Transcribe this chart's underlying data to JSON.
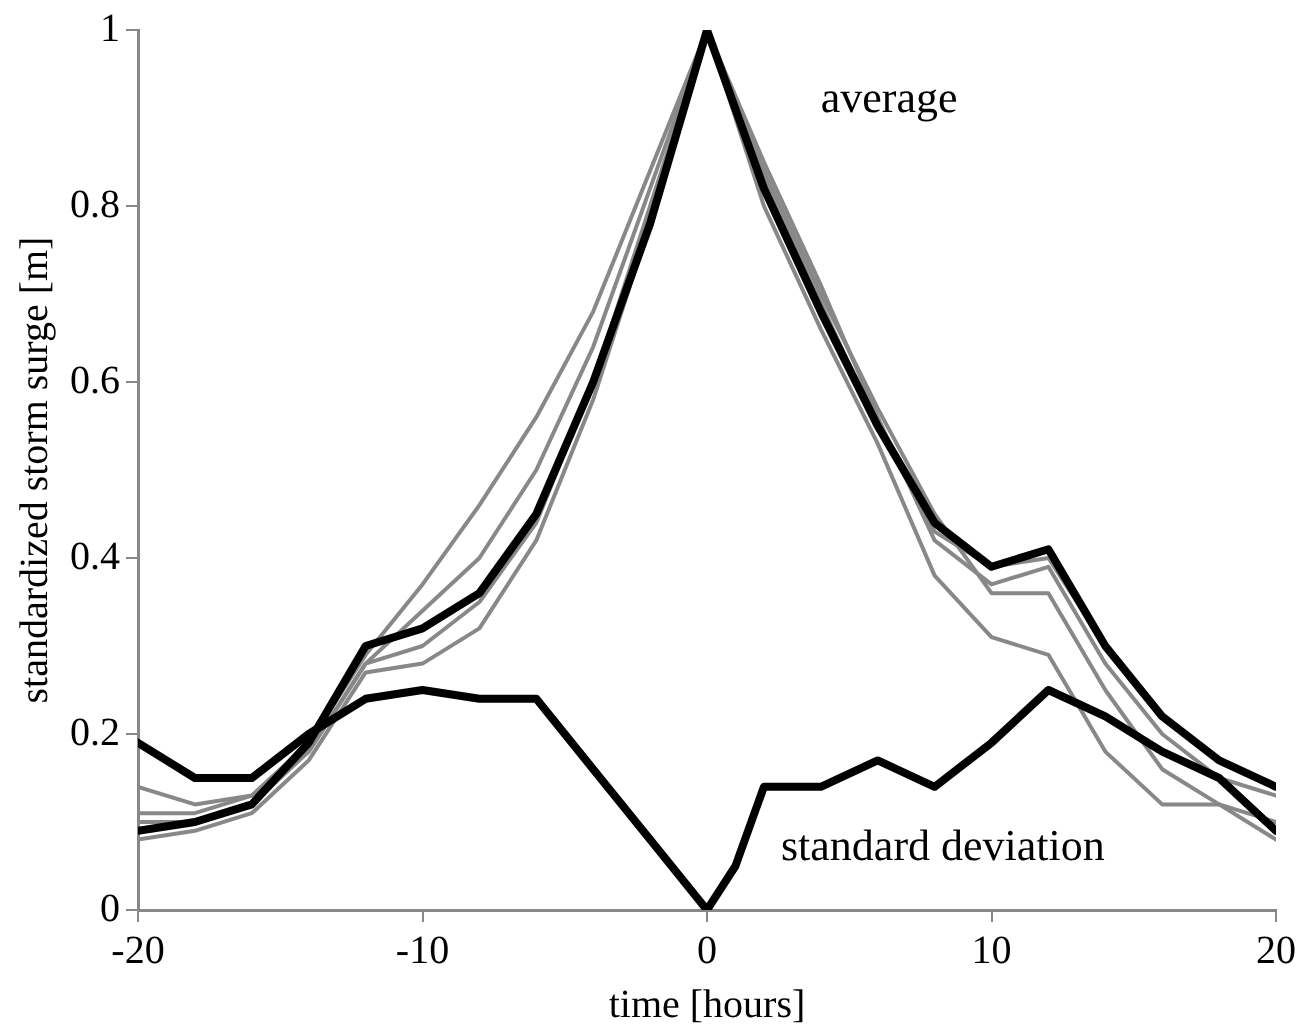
{
  "chart_data": {
    "type": "line",
    "xlabel": "time [hours]",
    "ylabel": "standardized storm surge [m]",
    "xlim": [
      -20,
      20
    ],
    "xticks": [
      -20,
      -10,
      0,
      10,
      20
    ],
    "ylim": [
      0,
      1
    ],
    "yticks": [
      0,
      0.2,
      0.4,
      0.6,
      0.8,
      1
    ],
    "grid": false,
    "legend": false,
    "marker": "none",
    "line_style": "solid",
    "x": [
      -20,
      -18,
      -16,
      -14,
      -12,
      -10,
      -8,
      -6,
      -4,
      -2,
      0,
      2,
      4,
      6,
      8,
      10,
      12,
      14,
      16,
      18,
      20
    ],
    "series": [
      {
        "color": "#888888",
        "values": [
          0.14,
          0.12,
          0.13,
          0.19,
          0.29,
          0.37,
          0.46,
          0.56,
          0.68,
          0.84,
          1.0,
          0.84,
          0.7,
          0.57,
          0.45,
          0.36,
          0.36,
          0.25,
          0.16,
          0.12,
          0.08
        ]
      },
      {
        "color": "#888888",
        "values": [
          0.08,
          0.09,
          0.11,
          0.17,
          0.27,
          0.28,
          0.32,
          0.42,
          0.58,
          0.78,
          1.0,
          0.8,
          0.66,
          0.53,
          0.38,
          0.31,
          0.29,
          0.18,
          0.12,
          0.12,
          0.1
        ]
      },
      {
        "color": "#888888",
        "values": [
          0.1,
          0.1,
          0.12,
          0.18,
          0.28,
          0.3,
          0.35,
          0.44,
          0.6,
          0.8,
          1.0,
          0.83,
          0.69,
          0.55,
          0.43,
          0.39,
          0.4,
          0.3,
          0.22,
          0.17,
          0.14
        ]
      },
      {
        "color": "#888888",
        "values": [
          0.11,
          0.11,
          0.13,
          0.18,
          0.28,
          0.34,
          0.4,
          0.5,
          0.64,
          0.82,
          1.0,
          0.85,
          0.71,
          0.56,
          0.42,
          0.37,
          0.39,
          0.28,
          0.2,
          0.15,
          0.13
        ]
      },
      {
        "color": "#000000",
        "values": [
          0.09,
          0.1,
          0.12,
          0.19,
          0.3,
          0.32,
          0.36,
          0.45,
          0.6,
          0.78,
          1.0,
          0.82,
          0.68,
          0.55,
          0.44,
          0.39,
          0.41,
          0.3,
          0.22,
          0.17,
          0.14
        ]
      },
      {
        "color": "#000000",
        "x": [
          -20,
          -18,
          -16,
          -14,
          -12,
          -10,
          -8,
          -6,
          -4,
          -2,
          0,
          1,
          2,
          4,
          6,
          8,
          10,
          12,
          14,
          16,
          18,
          20
        ],
        "values": [
          0.19,
          0.15,
          0.15,
          0.2,
          0.24,
          0.25,
          0.24,
          0.24,
          0.16,
          0.08,
          0.0,
          0.05,
          0.14,
          0.14,
          0.17,
          0.14,
          0.19,
          0.25,
          0.22,
          0.18,
          0.15,
          0.09
        ]
      }
    ],
    "annotations": [
      "average",
      "standard deviation"
    ]
  }
}
